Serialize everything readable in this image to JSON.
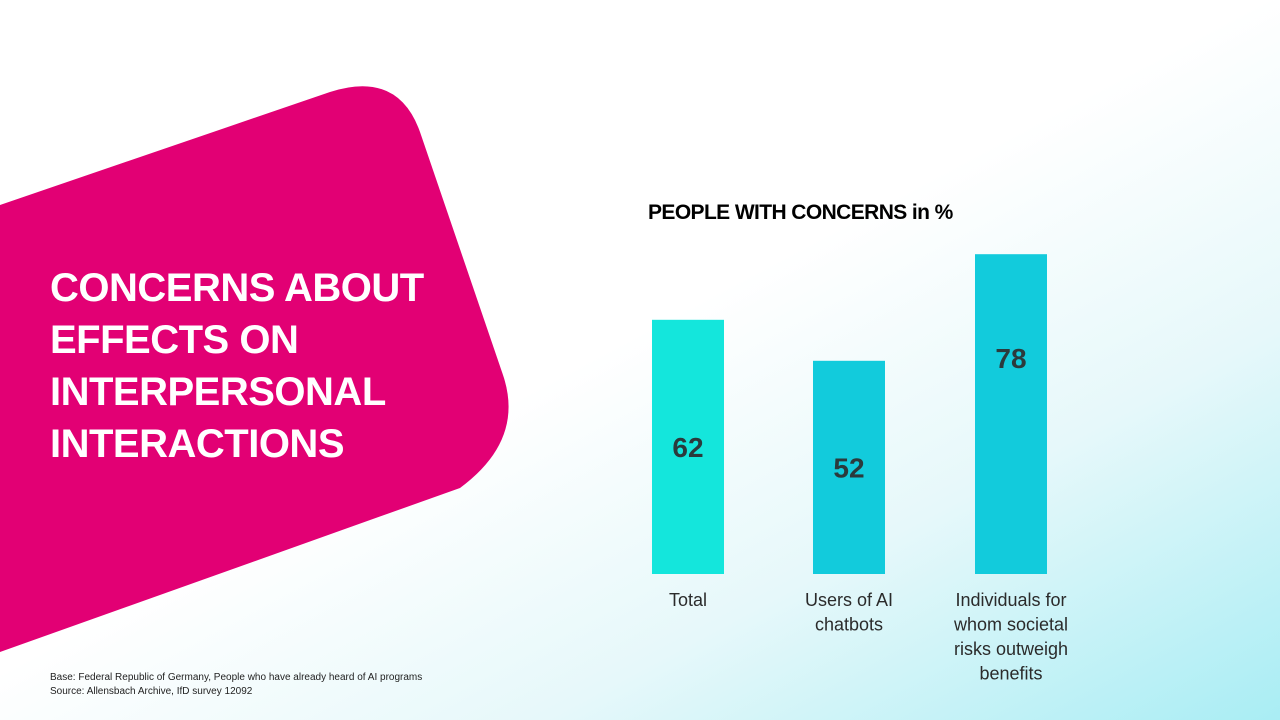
{
  "slide": {
    "headline_lines": [
      "CONCERNS ABOUT",
      "EFFECTS ON",
      "INTERPERSONAL",
      "INTERACTIONS"
    ],
    "footnote": {
      "base": "Base: Federal Republic of Germany, People who have already heard of AI programs",
      "source": "Source: Allensbach Archive, IfD survey 12092"
    }
  },
  "colors": {
    "magenta": "#e20074",
    "bar_total": "#14e6dc",
    "bar_other": "#12cbdc",
    "label_text": "#2b2b2b",
    "value_text": "#2b3a3c"
  },
  "chart_data": {
    "type": "bar",
    "title": "PEOPLE WITH CONCERNS in %",
    "categories": [
      [
        "Total"
      ],
      [
        "Users of AI",
        "chatbots"
      ],
      [
        "Individuals for",
        "whom societal",
        "risks outweigh",
        "benefits"
      ]
    ],
    "values": [
      62,
      52,
      78
    ],
    "unit": "%",
    "ylim": [
      0,
      100
    ],
    "grid": false,
    "legend": "none"
  }
}
